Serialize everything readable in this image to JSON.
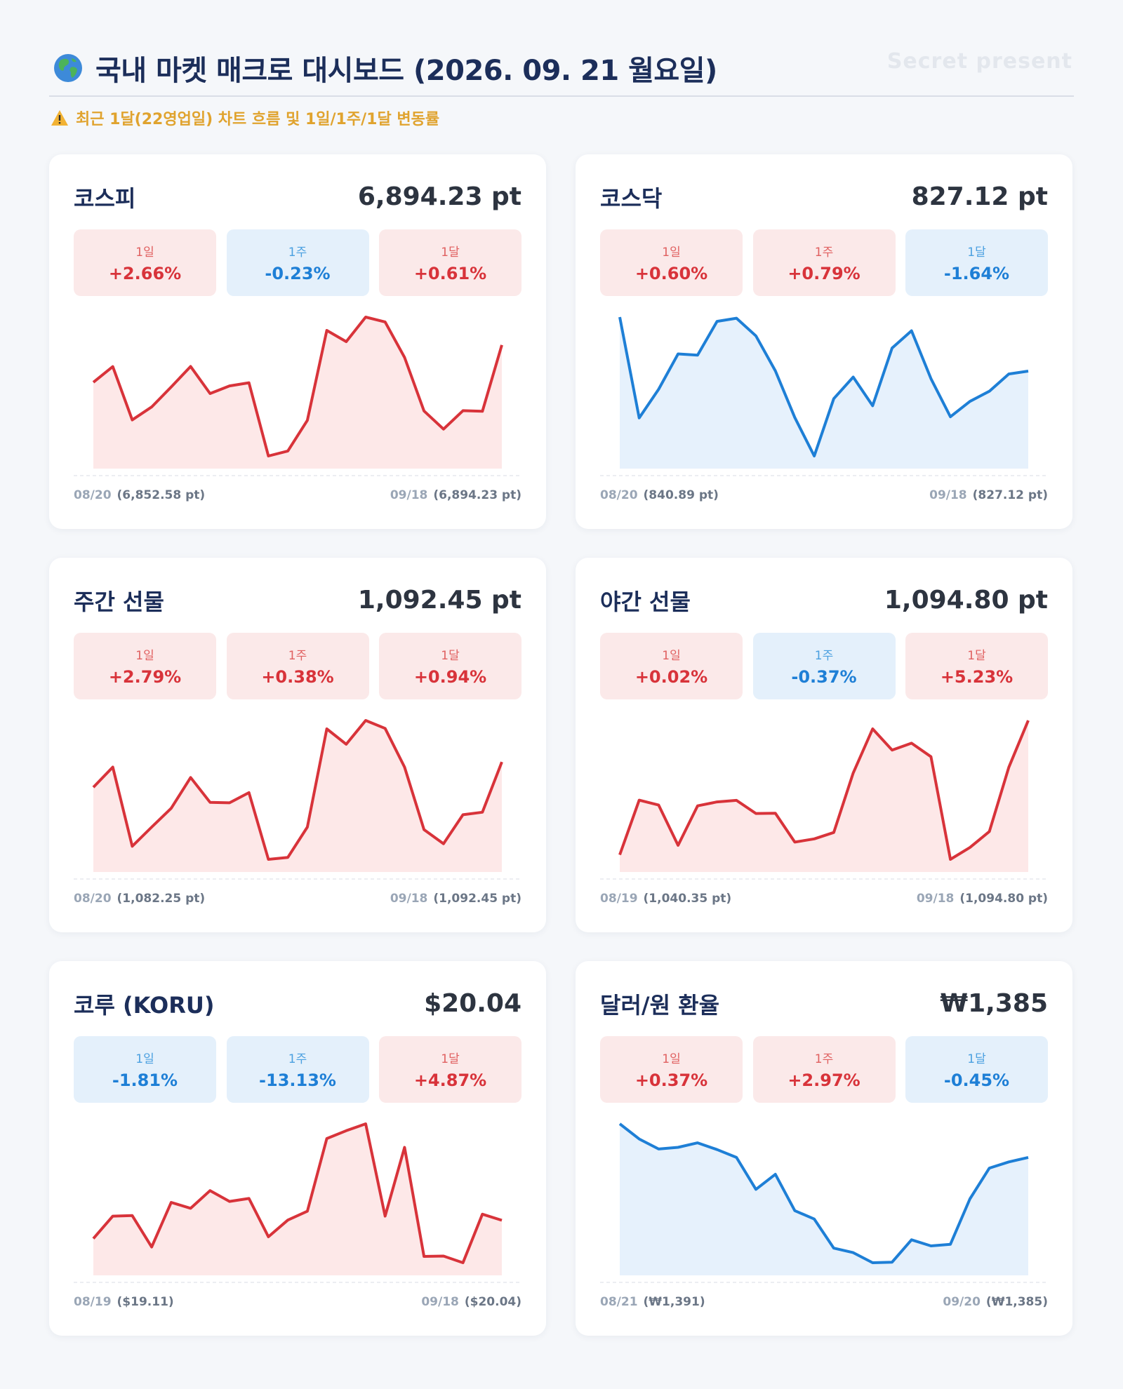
{
  "header": {
    "title": "국내 마켓 매크로 대시보드 (2026. 09. 21 월요일)",
    "watermark": "Secret present",
    "notice": "최근 1달(22영업일) 차트 흐름 및 1일/1주/1달 변동률",
    "icon": "globe-icon",
    "notice_icon": "warning-icon"
  },
  "colors": {
    "up": "#d8333a",
    "up_fill": "#fde8e8",
    "down": "#1e7fd6",
    "down_fill": "#e6f1fc"
  },
  "cards": [
    {
      "name": "코스피",
      "value": "6,894.23 pt",
      "trend": "up",
      "changes": [
        {
          "label": "1일",
          "value": "+2.66%",
          "dir": "up"
        },
        {
          "label": "1주",
          "value": "-0.23%",
          "dir": "down"
        },
        {
          "label": "1달",
          "value": "+0.61%",
          "dir": "up"
        }
      ],
      "start": {
        "date": "08/20",
        "value": "(6,852.58 pt)"
      },
      "end": {
        "date": "09/18",
        "value": "(6,894.23 pt)"
      }
    },
    {
      "name": "코스닥",
      "value": "827.12 pt",
      "trend": "down",
      "changes": [
        {
          "label": "1일",
          "value": "+0.60%",
          "dir": "up"
        },
        {
          "label": "1주",
          "value": "+0.79%",
          "dir": "up"
        },
        {
          "label": "1달",
          "value": "-1.64%",
          "dir": "down"
        }
      ],
      "start": {
        "date": "08/20",
        "value": "(840.89 pt)"
      },
      "end": {
        "date": "09/18",
        "value": "(827.12 pt)"
      }
    },
    {
      "name": "주간 선물",
      "value": "1,092.45 pt",
      "trend": "up",
      "changes": [
        {
          "label": "1일",
          "value": "+2.79%",
          "dir": "up"
        },
        {
          "label": "1주",
          "value": "+0.38%",
          "dir": "up"
        },
        {
          "label": "1달",
          "value": "+0.94%",
          "dir": "up"
        }
      ],
      "start": {
        "date": "08/20",
        "value": "(1,082.25 pt)"
      },
      "end": {
        "date": "09/18",
        "value": "(1,092.45 pt)"
      }
    },
    {
      "name": "야간 선물",
      "value": "1,094.80 pt",
      "trend": "up",
      "changes": [
        {
          "label": "1일",
          "value": "+0.02%",
          "dir": "up"
        },
        {
          "label": "1주",
          "value": "-0.37%",
          "dir": "down"
        },
        {
          "label": "1달",
          "value": "+5.23%",
          "dir": "up"
        }
      ],
      "start": {
        "date": "08/19",
        "value": "(1,040.35 pt)"
      },
      "end": {
        "date": "09/18",
        "value": "(1,094.80 pt)"
      }
    },
    {
      "name": "코루 (KORU)",
      "value": "$20.04",
      "trend": "up",
      "changes": [
        {
          "label": "1일",
          "value": "-1.81%",
          "dir": "down"
        },
        {
          "label": "1주",
          "value": "-13.13%",
          "dir": "down"
        },
        {
          "label": "1달",
          "value": "+4.87%",
          "dir": "up"
        }
      ],
      "start": {
        "date": "08/19",
        "value": "($19.11)"
      },
      "end": {
        "date": "09/18",
        "value": "($20.04)"
      }
    },
    {
      "name": "달러/원 환율",
      "value": "₩1,385",
      "trend": "down",
      "changes": [
        {
          "label": "1일",
          "value": "+0.37%",
          "dir": "up"
        },
        {
          "label": "1주",
          "value": "+2.97%",
          "dir": "up"
        },
        {
          "label": "1달",
          "value": "-0.45%",
          "dir": "down"
        }
      ],
      "start": {
        "date": "08/21",
        "value": "(₩1,391)"
      },
      "end": {
        "date": "09/20",
        "value": "(₩1,385)"
      }
    }
  ],
  "chart_data": [
    {
      "type": "area",
      "series": [
        {
          "values": [
            6852.58,
            6870.1,
            6810.5,
            6825.0,
            6847.3,
            6870.2,
            6840.0,
            6848.5,
            6852.0,
            6770.2,
            6775.8,
            6810.0,
            6910.5,
            6898.0,
            6925.4,
            6920.0,
            6880.3,
            6820.5,
            6800.2,
            6820.8,
            6820.1,
            6894.23
          ]
        }
      ]
    },
    {
      "type": "area",
      "series": [
        {
          "values": [
            840.89,
            815.2,
            822.5,
            831.5,
            831.2,
            839.8,
            840.6,
            836.1,
            827.2,
            815.3,
            805.5,
            820.1,
            825.6,
            818.3,
            833.0,
            837.4,
            825.2,
            815.5,
            819.4,
            822.0,
            826.4,
            827.12
          ]
        }
      ]
    },
    {
      "type": "area",
      "series": [
        {
          "values": [
            1082.25,
            1090.4,
            1058.5,
            1066.2,
            1073.8,
            1086.2,
            1076.2,
            1076.0,
            1080.1,
            1053.2,
            1054.0,
            1066.2,
            1105.8,
            1099.6,
            1109.2,
            1106.0,
            1090.4,
            1065.2,
            1059.5,
            1071.2,
            1072.2,
            1092.45
          ]
        }
      ]
    },
    {
      "type": "area",
      "series": [
        {
          "values": [
            1040.35,
            1062.5,
            1060.5,
            1044.2,
            1060.2,
            1061.8,
            1062.4,
            1057.1,
            1057.2,
            1045.5,
            1046.8,
            1049.4,
            1073.5,
            1091.4,
            1082.8,
            1085.6,
            1080.1,
            1038.5,
            1043.3,
            1049.8,
            1075.8,
            1094.8
          ]
        }
      ]
    },
    {
      "type": "area",
      "series": [
        {
          "values": [
            19.11,
            20.25,
            20.28,
            18.68,
            20.95,
            20.65,
            21.55,
            21.0,
            21.15,
            19.2,
            20.05,
            20.5,
            24.2,
            24.6,
            24.95,
            20.25,
            23.75,
            18.2,
            18.22,
            17.88,
            20.35,
            20.04
          ]
        }
      ]
    },
    {
      "type": "area",
      "series": [
        {
          "values": [
            1391,
            1388.3,
            1386.5,
            1386.8,
            1387.6,
            1386.4,
            1385.0,
            1379.3,
            1382.0,
            1375.5,
            1374.0,
            1368.8,
            1368.0,
            1366.2,
            1366.3,
            1370.3,
            1369.2,
            1369.5,
            1377.6,
            1383.1,
            1384.2,
            1385
          ]
        }
      ]
    }
  ]
}
